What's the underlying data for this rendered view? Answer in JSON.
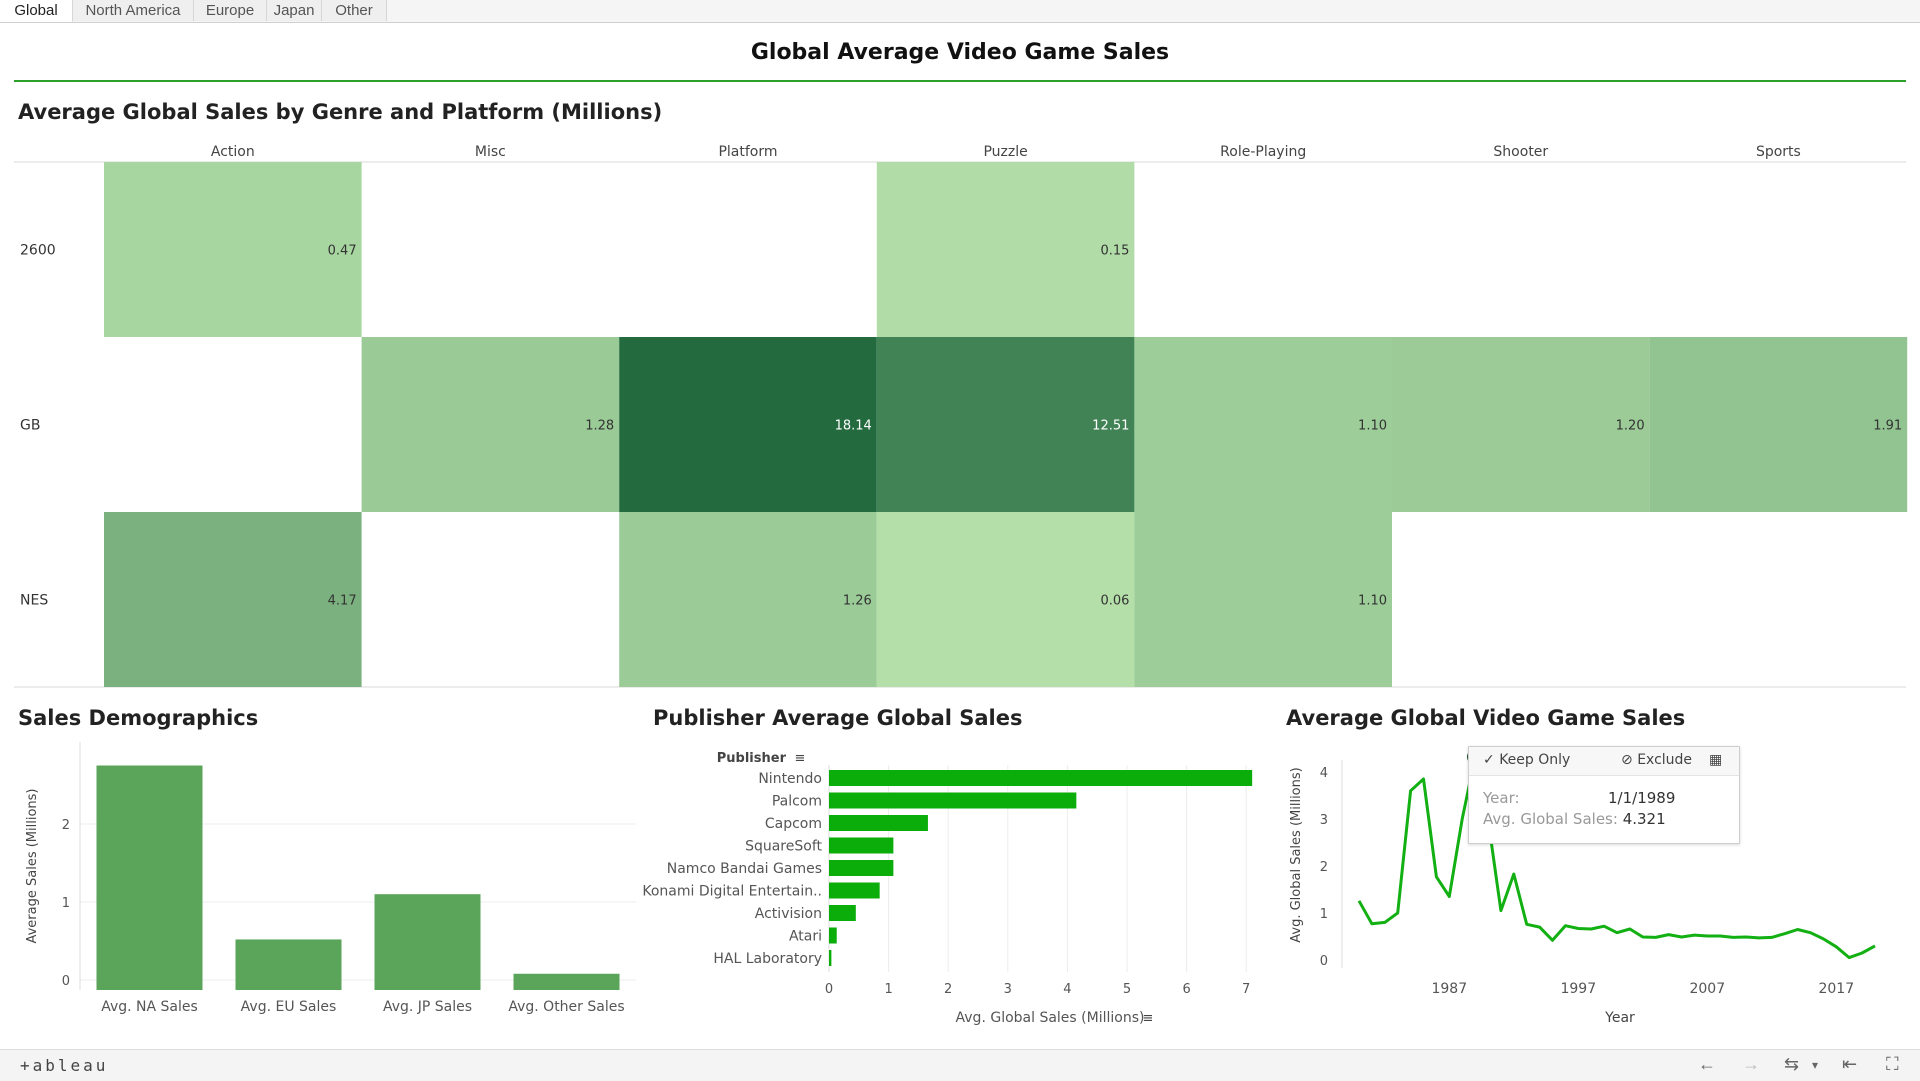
{
  "tabs": [
    "Global",
    "North America",
    "Europe",
    "Japan",
    "Other"
  ],
  "active_tab": "Global",
  "page_title": "Global Average Video Game Sales",
  "colors": {
    "accent": "#2ba12b",
    "bar_green": "#5aa55a",
    "bright_green": "#0aad0a",
    "line_green": "#12b012"
  },
  "heatmap": {
    "title": "Average Global Sales by Genre and Platform (Millions)"
  },
  "demographics": {
    "title": "Sales Demographics"
  },
  "publishers": {
    "title": "Publisher Average Global Sales",
    "header_label": "Publisher"
  },
  "trend": {
    "title": "Average Global Video Game Sales"
  },
  "tooltip": {
    "keep_label": "Keep Only",
    "exclude_label": "Exclude",
    "year_label": "Year:",
    "year_value": "1/1/1989",
    "sales_label": "Avg. Global Sales:",
    "sales_value": "4.321"
  },
  "footer": {
    "brand": "+ableau"
  },
  "chart_data": [
    {
      "type": "heatmap",
      "title": "Average Global Sales by Genre and Platform (Millions)",
      "columns": [
        "Action",
        "Misc",
        "Platform",
        "Puzzle",
        "Role-Playing",
        "Shooter",
        "Sports"
      ],
      "rows": [
        "2600",
        "GB",
        "NES"
      ],
      "values": [
        [
          0.47,
          null,
          null,
          0.15,
          null,
          null,
          null
        ],
        [
          null,
          1.28,
          18.14,
          12.51,
          1.1,
          1.2,
          1.91
        ],
        [
          4.17,
          null,
          1.26,
          0.06,
          1.1,
          null,
          null
        ]
      ],
      "labels": [
        [
          "0.47",
          null,
          null,
          "0.15",
          null,
          null,
          null
        ],
        [
          null,
          "1.28",
          "18.14",
          "12.51",
          "1.10",
          "1.20",
          "1.91"
        ],
        [
          "4.17",
          null,
          "1.26",
          "0.06",
          "1.10",
          null,
          null
        ]
      ]
    },
    {
      "type": "bar",
      "title": "Sales Demographics",
      "categories": [
        "Avg. NA Sales",
        "Avg. EU Sales",
        "Avg. JP Sales",
        "Avg. Other Sales"
      ],
      "values": [
        2.75,
        0.52,
        1.1,
        0.08
      ],
      "ylabel": "Average Sales (Millions)",
      "yticks": [
        0,
        1,
        2
      ],
      "ylim": [
        -0.1,
        2.9
      ]
    },
    {
      "type": "bar",
      "orientation": "horizontal",
      "title": "Publisher Average Global Sales",
      "categories": [
        "Nintendo",
        "Palcom",
        "Capcom",
        "SquareSoft",
        "Namco Bandai Games",
        "Konami Digital Entertain..",
        "Activision",
        "Atari",
        "HAL Laboratory"
      ],
      "values": [
        7.1,
        4.15,
        1.66,
        1.08,
        1.08,
        0.85,
        0.45,
        0.13,
        0.04
      ],
      "xlabel": "Avg. Global Sales (Millions)",
      "xticks": [
        0,
        1,
        2,
        3,
        4,
        5,
        6,
        7
      ],
      "xlim": [
        0,
        7.5
      ]
    },
    {
      "type": "line",
      "title": "",
      "x": [
        1980,
        1981,
        1982,
        1983,
        1984,
        1985,
        1986,
        1987,
        1988,
        1989,
        1990,
        1991,
        1992,
        1993,
        1994,
        1995,
        1996,
        1997,
        1998,
        1999,
        2000,
        2001,
        2002,
        2003,
        2004,
        2005,
        2006,
        2007,
        2008,
        2009,
        2010,
        2011,
        2012,
        2013,
        2014,
        2015,
        2016,
        2017,
        2018,
        2019,
        2020
      ],
      "y": [
        1.26,
        0.77,
        0.8,
        1.0,
        3.6,
        3.85,
        1.77,
        1.35,
        3.0,
        4.32,
        3.0,
        1.05,
        1.83,
        0.76,
        0.7,
        0.42,
        0.73,
        0.67,
        0.66,
        0.72,
        0.58,
        0.66,
        0.49,
        0.48,
        0.54,
        0.49,
        0.53,
        0.51,
        0.51,
        0.48,
        0.49,
        0.47,
        0.48,
        0.56,
        0.65,
        0.58,
        0.45,
        0.28,
        0.05,
        0.15,
        0.3
      ],
      "xlabel": "Year",
      "ylabel": "Avg. Global Sales (Millions)",
      "xticks": [
        1987,
        1997,
        2007,
        2017
      ],
      "yticks": [
        0,
        1,
        2,
        3,
        4
      ],
      "highlight": {
        "x": 1989,
        "y": 4.321
      }
    }
  ]
}
